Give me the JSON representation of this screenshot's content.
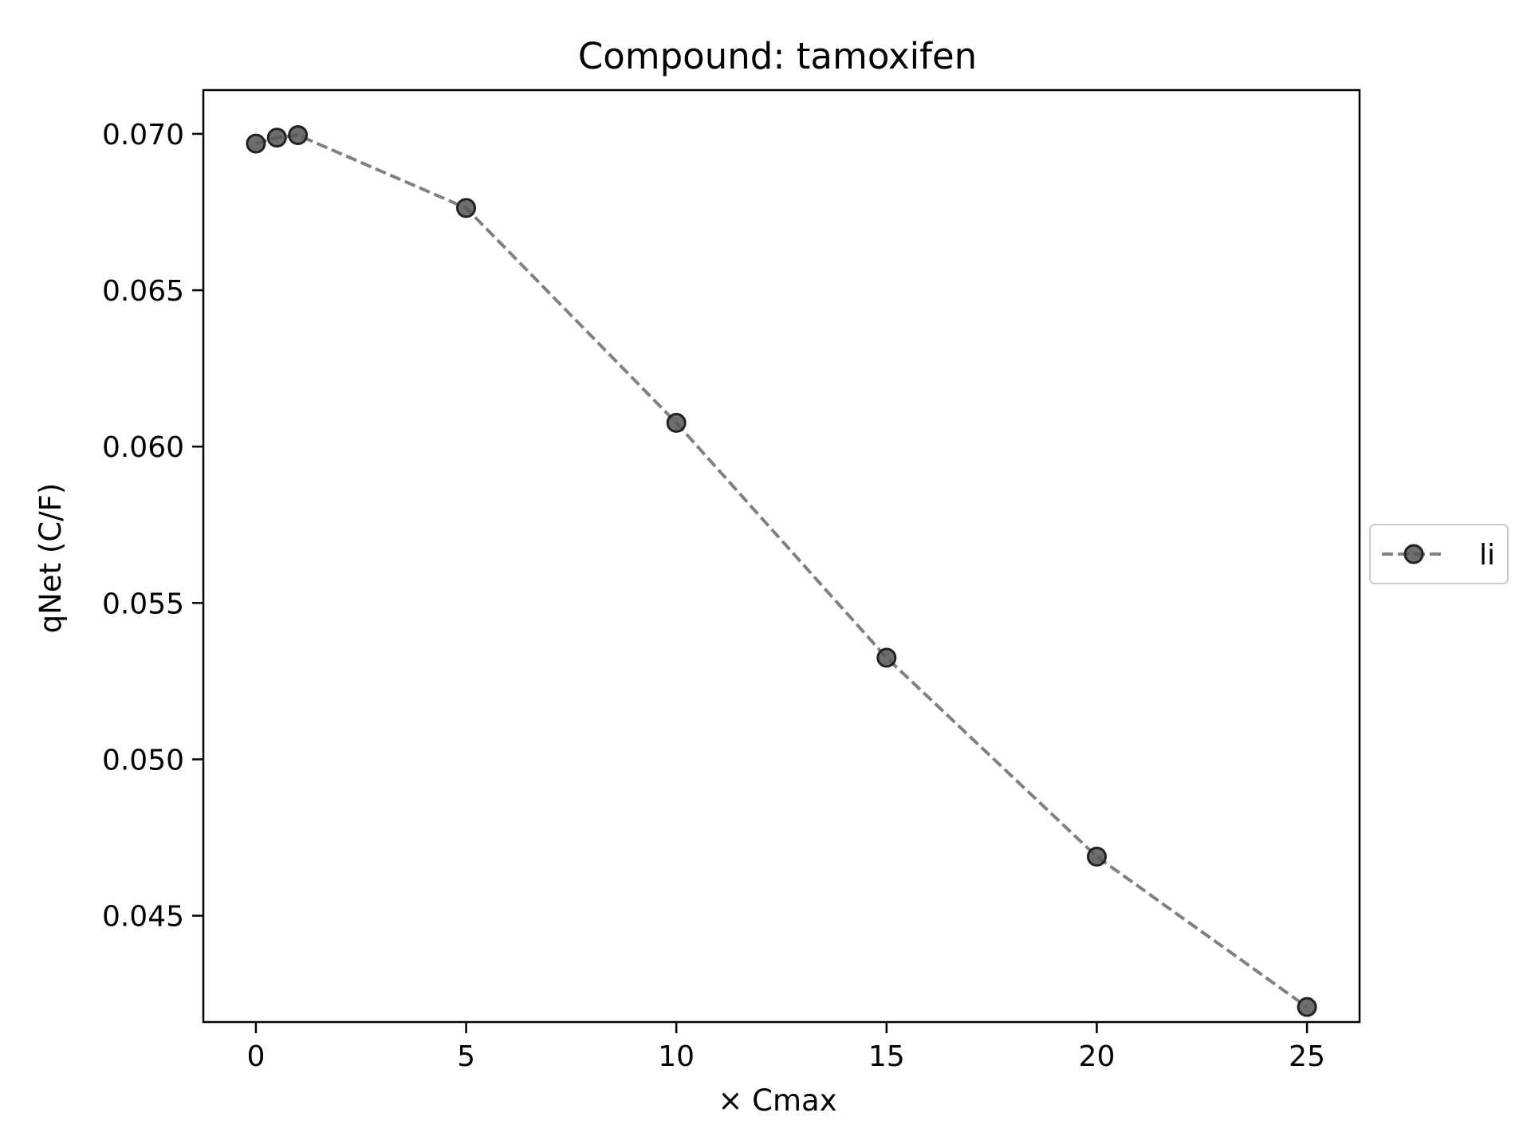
{
  "chart_data": {
    "type": "line",
    "title": "Compound: tamoxifen",
    "xlabel": "× Cmax",
    "ylabel": "qNet (C/F)",
    "xlim": [
      -1.25,
      26.25
    ],
    "ylim": [
      0.0416,
      0.0714
    ],
    "x_ticks": [
      0,
      5,
      10,
      15,
      20,
      25
    ],
    "x_tick_labels": [
      "0",
      "5",
      "10",
      "15",
      "20",
      "25"
    ],
    "y_ticks": [
      0.045,
      0.05,
      0.055,
      0.06,
      0.065,
      0.07
    ],
    "y_tick_labels": [
      "0.045",
      "0.050",
      "0.055",
      "0.060",
      "0.065",
      "0.070"
    ],
    "grid": false,
    "legend_position": "center-right outside",
    "series": [
      {
        "name": "li",
        "color": "#555555",
        "line_style": "dashed",
        "marker": "circle",
        "x": [
          0,
          0.5,
          1,
          5,
          10,
          15,
          20,
          25
        ],
        "y": [
          0.06969,
          0.06988,
          0.06996,
          0.06763,
          0.06076,
          0.05325,
          0.04689,
          0.04208
        ]
      }
    ]
  }
}
